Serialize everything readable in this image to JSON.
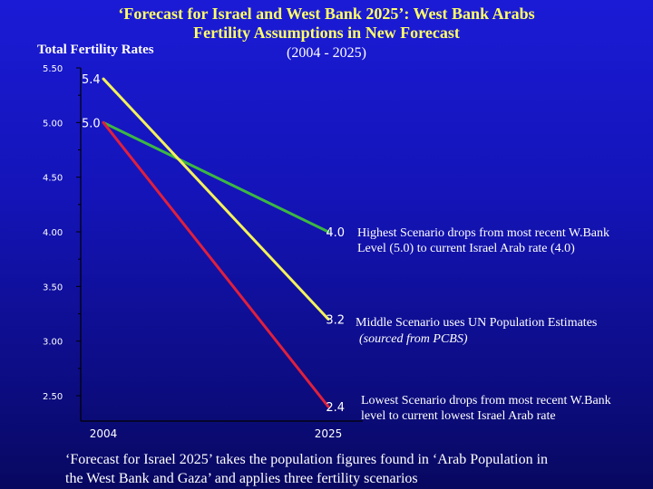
{
  "title_line1": "‘Forecast for Israel and West Bank 2025’:  West Bank Arabs",
  "title_line2": "Fertility Assumptions in New Forecast",
  "period": "(2004 - 2025)",
  "colors": {
    "title": "#ffff66",
    "high": "#3cb843",
    "mid": "#f5f25a",
    "low": "#e0203c",
    "background": "#1414b8"
  },
  "notes": {
    "high_line1": "Highest Scenario drops from most recent W.Bank",
    "high_line2": "Level (5.0)  to current Israel Arab rate (4.0)",
    "mid_line1": "Middle Scenario uses UN Population Estimates",
    "mid_line2": "(sourced from PCBS)",
    "low_line1": "Lowest Scenario drops from most recent W.Bank",
    "low_line2": "level to current lowest Israel Arab rate"
  },
  "footer_line1": "‘Forecast for Israel 2025’ takes the population figures found in ‘Arab Population in",
  "footer_line2": "the West Bank and Gaza’ and applies three fertility scenarios",
  "chart_data": {
    "type": "line",
    "ylabel": "Total Fertility Rates",
    "xlabel": "",
    "x": [
      2004,
      2025
    ],
    "x_tick_labels": [
      "2004",
      "2025"
    ],
    "ylim": [
      2.5,
      5.5
    ],
    "y_tick_labels": [
      "5.50",
      "5.00",
      "4.50",
      "4.00",
      "3.50",
      "3.00",
      "2.50"
    ],
    "grid": false,
    "series": [
      {
        "key": "high",
        "values": [
          5.0,
          4.0
        ],
        "labels": [
          "5.0",
          "4.0"
        ],
        "color": "#3cb843"
      },
      {
        "key": "mid",
        "values": [
          5.4,
          3.2
        ],
        "labels": [
          "5.4",
          "3.2"
        ],
        "color": "#f5f25a"
      },
      {
        "key": "low",
        "values": [
          5.0,
          2.4
        ],
        "labels": [
          "",
          "2.4"
        ],
        "color": "#e0203c"
      }
    ]
  }
}
